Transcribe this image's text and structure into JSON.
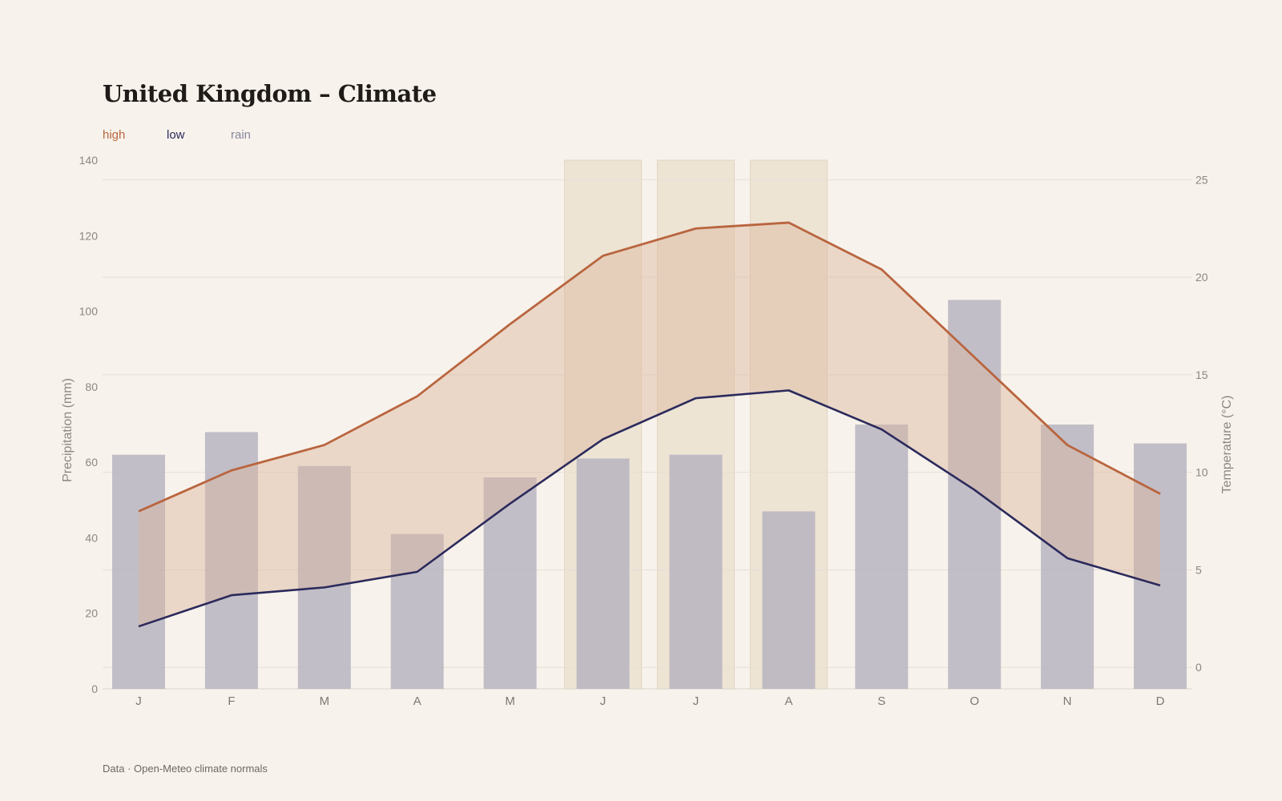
{
  "page": {
    "title": "United Kingdom – Climate",
    "footer": "Data · Open-Meteo climate normals"
  },
  "legend": {
    "high": "high",
    "low": "low",
    "rain": "rain"
  },
  "colors": {
    "background": "#f7f2eb",
    "high": "#b9653f",
    "low": "#2b2a5c",
    "rain": "#b4b0bd",
    "band": "#dbb59e",
    "summer": "#e8dcc8",
    "grid": "#e6dfd6"
  },
  "chart_data": {
    "type": "bar+line",
    "categories": [
      "J",
      "F",
      "M",
      "A",
      "M",
      "J",
      "J",
      "A",
      "S",
      "O",
      "N",
      "D"
    ],
    "highlighted_months": [
      5,
      6,
      7
    ],
    "series": [
      {
        "name": "rain",
        "type": "bar",
        "axis": "left",
        "values": [
          62,
          68,
          59,
          41,
          56,
          61,
          62,
          47,
          70,
          103,
          70,
          65
        ]
      },
      {
        "name": "high",
        "type": "line",
        "axis": "right",
        "values": [
          8.0,
          10.1,
          11.4,
          13.9,
          17.6,
          21.1,
          22.5,
          22.8,
          20.4,
          15.9,
          11.4,
          8.9
        ]
      },
      {
        "name": "low",
        "type": "line",
        "axis": "right",
        "values": [
          2.1,
          3.7,
          4.1,
          4.9,
          8.4,
          11.7,
          13.8,
          14.2,
          12.2,
          9.1,
          5.6,
          4.2
        ]
      }
    ],
    "left_axis": {
      "label": "Precipitation (mm)",
      "range": [
        0,
        140
      ],
      "ticks": [
        "0",
        "20",
        "40",
        "60",
        "80",
        "100",
        "120",
        "140"
      ]
    },
    "right_axis": {
      "label": "Temperature (°C)",
      "range": [
        -1.1,
        26.0
      ],
      "ticks": [
        "0",
        "5",
        "10",
        "15",
        "20",
        "25"
      ]
    },
    "grid": "horizontal",
    "legend_position": "top-left"
  }
}
